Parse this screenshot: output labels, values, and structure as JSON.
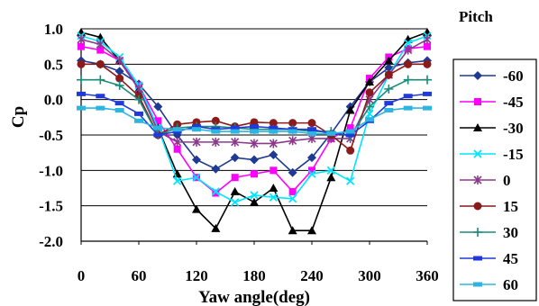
{
  "chart_data": {
    "type": "line",
    "xlabel": "Yaw angle(deg)",
    "ylabel": "Cp",
    "legend_title": "Pitch",
    "legend_placement": "right",
    "xlim": [
      0,
      360
    ],
    "ylim": [
      -2.0,
      1.0
    ],
    "xticks": [
      0,
      60,
      120,
      180,
      240,
      300,
      360
    ],
    "yticks": [
      1.0,
      0.5,
      0.0,
      -0.5,
      -1.0,
      -1.5,
      -2.0
    ],
    "xtick_labels": [
      "0",
      "60",
      "120",
      "180",
      "240",
      "300",
      "360"
    ],
    "ytick_labels": [
      "1.0",
      "0.5",
      "0.0",
      "-0.5",
      "-1.0",
      "-1.5",
      "-2.0"
    ],
    "grid": "horizontal",
    "x": [
      0,
      20,
      40,
      60,
      80,
      100,
      120,
      140,
      160,
      180,
      200,
      220,
      240,
      260,
      280,
      300,
      320,
      340,
      360
    ],
    "series": [
      {
        "name": "-60",
        "color": "#1f3a93",
        "marker": "diamond",
        "values": [
          0.55,
          0.5,
          0.4,
          0.22,
          -0.1,
          -0.5,
          -0.85,
          -0.98,
          -0.82,
          -0.85,
          -0.78,
          -1.03,
          -0.82,
          -0.48,
          -0.1,
          0.25,
          0.45,
          0.52,
          0.55
        ]
      },
      {
        "name": "-45",
        "color": "#ff00ff",
        "marker": "square",
        "values": [
          0.75,
          0.7,
          0.55,
          0.2,
          -0.3,
          -0.7,
          -1.1,
          -1.32,
          -1.1,
          -1.05,
          -1.0,
          -1.3,
          -1.0,
          -0.55,
          -0.4,
          0.3,
          0.6,
          0.72,
          0.75
        ]
      },
      {
        "name": "-30",
        "color": "#000000",
        "marker": "triangle",
        "values": [
          0.95,
          0.88,
          0.55,
          0.15,
          -0.4,
          -1.05,
          -1.55,
          -1.82,
          -1.3,
          -1.45,
          -1.25,
          -1.85,
          -1.85,
          -1.1,
          -0.15,
          0.25,
          0.55,
          0.85,
          0.95
        ]
      },
      {
        "name": "-15",
        "color": "#00e5ff",
        "marker": "x",
        "values": [
          0.9,
          0.82,
          0.6,
          0.2,
          -0.4,
          -1.15,
          -1.1,
          -1.3,
          -1.45,
          -1.35,
          -1.38,
          -1.4,
          -1.05,
          -1.0,
          -1.15,
          -0.2,
          0.35,
          0.8,
          0.9
        ]
      },
      {
        "name": "0",
        "color": "#8b3a8b",
        "marker": "star",
        "values": [
          0.85,
          0.78,
          0.55,
          0.15,
          -0.45,
          -0.6,
          -0.6,
          -0.6,
          -0.6,
          -0.62,
          -0.62,
          -0.58,
          -0.55,
          -0.55,
          -0.55,
          0.0,
          0.35,
          0.7,
          0.85
        ]
      },
      {
        "name": "15",
        "color": "#8b1a1a",
        "marker": "circle",
        "values": [
          0.5,
          0.5,
          0.3,
          0.05,
          -0.5,
          -0.35,
          -0.32,
          -0.3,
          -0.38,
          -0.32,
          -0.33,
          -0.33,
          -0.33,
          -0.5,
          -0.72,
          0.1,
          0.35,
          0.5,
          0.5
        ]
      },
      {
        "name": "30",
        "color": "#1a8a7a",
        "marker": "plus",
        "values": [
          0.28,
          0.28,
          0.2,
          0.0,
          -0.5,
          -0.4,
          -0.38,
          -0.38,
          -0.4,
          -0.42,
          -0.42,
          -0.42,
          -0.45,
          -0.45,
          -0.52,
          -0.1,
          0.15,
          0.28,
          0.28
        ]
      },
      {
        "name": "45",
        "color": "#1f3ad8",
        "marker": "dash",
        "values": [
          0.08,
          0.05,
          -0.05,
          -0.2,
          -0.5,
          -0.45,
          -0.38,
          -0.42,
          -0.4,
          -0.38,
          -0.4,
          -0.42,
          -0.42,
          -0.48,
          -0.5,
          -0.3,
          -0.05,
          0.05,
          0.08
        ]
      },
      {
        "name": "60",
        "color": "#2bb5e0",
        "marker": "dash",
        "values": [
          -0.12,
          -0.12,
          -0.15,
          -0.3,
          -0.4,
          -0.42,
          -0.42,
          -0.45,
          -0.45,
          -0.45,
          -0.45,
          -0.45,
          -0.48,
          -0.48,
          -0.45,
          -0.28,
          -0.15,
          -0.12,
          -0.12
        ]
      }
    ]
  }
}
